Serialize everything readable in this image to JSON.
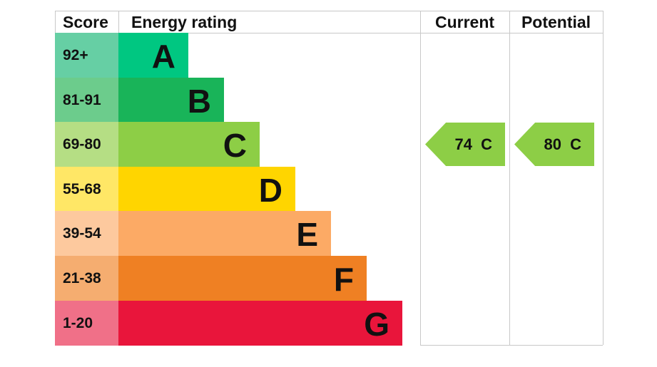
{
  "chart_data": {
    "type": "table",
    "headers": {
      "score": "Score",
      "rating": "Energy rating",
      "current": "Current",
      "potential": "Potential"
    },
    "bands": [
      {
        "score": "92+",
        "letter": "A",
        "color": "#00c781",
        "light": "#66cfa4"
      },
      {
        "score": "81-91",
        "letter": "B",
        "color": "#19b459",
        "light": "#6ccc8c"
      },
      {
        "score": "69-80",
        "letter": "C",
        "color": "#8dce46",
        "light": "#b5de84"
      },
      {
        "score": "55-68",
        "letter": "D",
        "color": "#ffd500",
        "light": "#ffe766"
      },
      {
        "score": "39-54",
        "letter": "E",
        "color": "#fcaa65",
        "light": "#fdc99e"
      },
      {
        "score": "21-38",
        "letter": "F",
        "color": "#ef8023",
        "light": "#f5ad70"
      },
      {
        "score": "1-20",
        "letter": "G",
        "color": "#e9153b",
        "light": "#f07088"
      }
    ],
    "current": {
      "value": 74,
      "band": "C",
      "label": "74 C",
      "color": "#8dce46"
    },
    "potential": {
      "value": 80,
      "band": "C",
      "label": "80 C",
      "color": "#8dce46"
    }
  }
}
